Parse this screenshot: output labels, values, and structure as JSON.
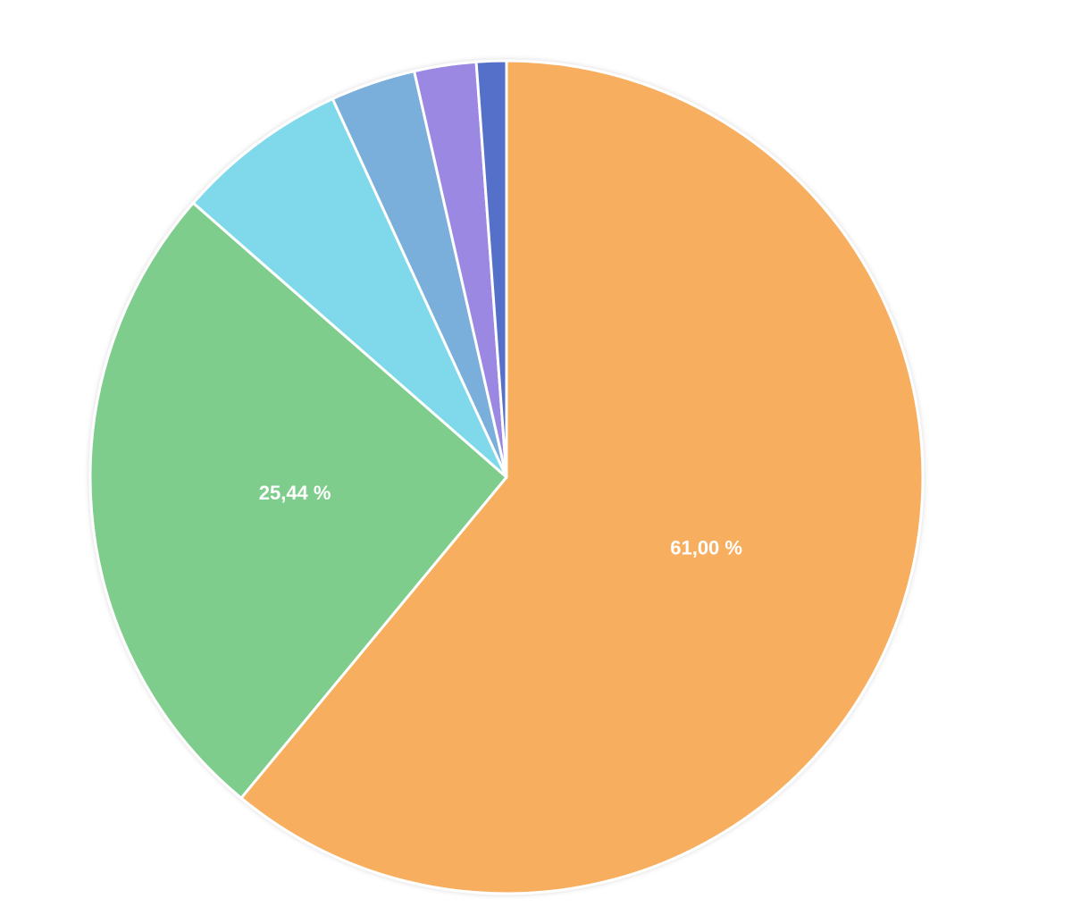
{
  "chart_data": {
    "type": "pie",
    "values": [
      61.0,
      25.44,
      6.7,
      3.3,
      2.4,
      1.16
    ],
    "value_labels": [
      "61,00 %",
      "25,44 %",
      null,
      null,
      null,
      null
    ],
    "colors": [
      "#f7ae5f",
      "#7ecd8c",
      "#80d9ea",
      "#7aaedb",
      "#9b88e3",
      "#5470c8"
    ]
  }
}
